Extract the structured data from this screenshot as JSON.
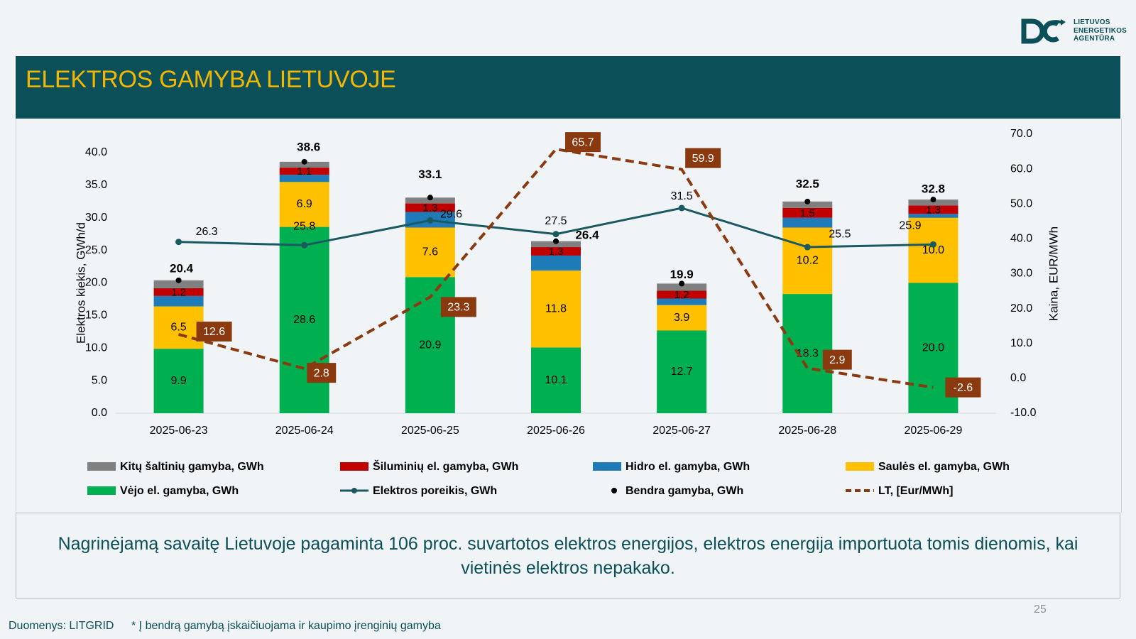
{
  "logo": {
    "lines": [
      "LIETUVOS",
      "ENERGETIKOS",
      "AGENTŪRA"
    ],
    "icon": "lea-logo-icon",
    "color": "#0b4f58"
  },
  "header": {
    "title": "ELEKTROS GAMYBA LIETUVOJE"
  },
  "summary": "Nagrinėjamą savaitę Lietuvoje pagaminta 106 proc. suvartotos elektros energijos, elektros energija importuota tomis dienomis, kai vietinės elektros nepakako.",
  "page_number": "25",
  "footer": {
    "source": "Duomenys: LITGRID",
    "note": "* Į bendrą gamybą įskaičiuojama ir kaupimo įrenginių gamyba"
  },
  "chart_data": {
    "type": "bar",
    "stacked": true,
    "categories": [
      "2025-06-23",
      "2025-06-24",
      "2025-06-25",
      "2025-06-26",
      "2025-06-27",
      "2025-06-28",
      "2025-06-29"
    ],
    "ylabel": "Elektros kiekis, GWh/d",
    "ylim": [
      0,
      40
    ],
    "yticks": [
      "0.0",
      "5.0",
      "10.0",
      "15.0",
      "20.0",
      "25.0",
      "30.0",
      "35.0",
      "40.0"
    ],
    "y2label": "Kaina, EUR/MWh",
    "y2lim": [
      -10,
      70
    ],
    "y2ticks": [
      "-10.0",
      "0.0",
      "10.0",
      "20.0",
      "30.0",
      "40.0",
      "50.0",
      "60.0",
      "70.0"
    ],
    "series": [
      {
        "name": "Vėjo el. gamyba, GWh",
        "kind": "bar",
        "color": "#00b050",
        "values": [
          9.9,
          28.6,
          20.9,
          10.1,
          12.7,
          18.3,
          20.0
        ],
        "labels": [
          "9.9",
          "28.6",
          "20.9",
          "10.1",
          "12.7",
          "18.3",
          "20.0"
        ]
      },
      {
        "name": "Saulės el. gamyba, GWh",
        "kind": "bar",
        "color": "#ffc000",
        "values": [
          6.5,
          6.9,
          7.6,
          11.8,
          3.9,
          10.2,
          10.0
        ],
        "labels": [
          "6.5",
          "6.9",
          "7.6",
          "11.8",
          "3.9",
          "10.2",
          "10.0"
        ]
      },
      {
        "name": "Hidro el. gamyba, GWh",
        "kind": "bar",
        "color": "#1f7bb8",
        "values": [
          1.6,
          1.1,
          2.4,
          2.3,
          1.0,
          1.5,
          0.6
        ]
      },
      {
        "name": "Šiluminių el. gamyba, GWh",
        "kind": "bar",
        "color": "#c00000",
        "values": [
          1.2,
          1.1,
          1.3,
          1.3,
          1.2,
          1.5,
          1.3
        ],
        "labels": [
          "1.2",
          "1.1",
          "1.3",
          "1.3",
          "1.2",
          "1.5",
          "1.3"
        ]
      },
      {
        "name": "Kitų šaltinių gamyba,  GWh",
        "kind": "bar",
        "color": "#808080",
        "values": [
          1.2,
          0.9,
          0.9,
          0.9,
          1.1,
          1.0,
          0.9
        ]
      },
      {
        "name": "Elektros poreikis, GWh",
        "kind": "line",
        "color": "#1a5960",
        "values": [
          26.3,
          25.8,
          29.6,
          27.5,
          31.5,
          25.5,
          25.9
        ],
        "labels": [
          "26.3",
          "25.8",
          "29.6",
          "27.5",
          "31.5",
          "25.5",
          "25.9"
        ]
      },
      {
        "name": "Bendra gamyba, GWh",
        "kind": "dot",
        "color": "#000000",
        "values": [
          20.4,
          38.6,
          33.1,
          26.4,
          19.9,
          32.5,
          32.8
        ],
        "labels": [
          "20.4",
          "38.6",
          "33.1",
          "26.4",
          "19.9",
          "32.5",
          "32.8"
        ]
      },
      {
        "name": "LT, [Eur/MWh]",
        "kind": "line",
        "axis": "right",
        "dashed": true,
        "color": "#8b3a10",
        "values": [
          12.6,
          2.8,
          23.3,
          65.7,
          59.9,
          2.9,
          -2.6
        ],
        "labels": [
          "12.6",
          "2.8",
          "23.3",
          "65.7",
          "59.9",
          "2.9",
          "-2.6"
        ]
      }
    ],
    "legend_order": [
      "Kitų šaltinių gamyba,  GWh",
      "Šiluminių el. gamyba, GWh",
      "Hidro el. gamyba, GWh",
      "Saulės el. gamyba, GWh",
      "Vėjo el. gamyba, GWh",
      "Elektros poreikis, GWh",
      "Bendra gamyba, GWh",
      "LT, [Eur/MWh]"
    ],
    "legend_position": "bottom",
    "grid": false
  }
}
